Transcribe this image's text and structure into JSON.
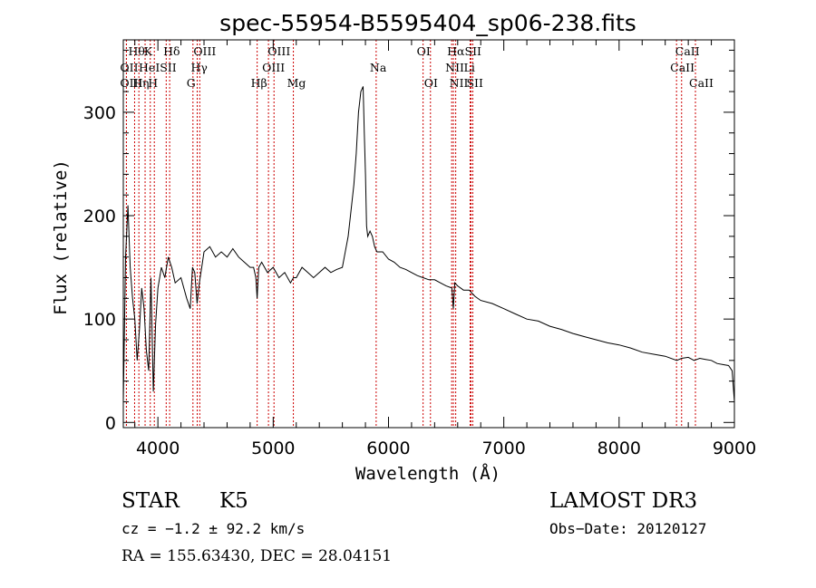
{
  "chart_data": {
    "type": "line",
    "title": "spec-55954-B5595404_sp06-238.fits",
    "xlabel": "Wavelength (Å)",
    "ylabel": "Flux (relative)",
    "xlim": [
      3700,
      9000
    ],
    "ylim": [
      -5,
      370
    ],
    "x_ticks": [
      4000,
      5000,
      6000,
      7000,
      8000,
      9000
    ],
    "y_ticks": [
      0,
      100,
      200,
      300
    ],
    "line_color": "#000000",
    "marker_color": "#cc0000",
    "spectrum": {
      "x": [
        3700,
        3720,
        3740,
        3760,
        3780,
        3800,
        3820,
        3840,
        3860,
        3880,
        3900,
        3920,
        3940,
        3960,
        3980,
        4000,
        4030,
        4060,
        4090,
        4120,
        4150,
        4200,
        4250,
        4280,
        4300,
        4320,
        4340,
        4360,
        4380,
        4400,
        4450,
        4500,
        4550,
        4600,
        4650,
        4700,
        4750,
        4800,
        4830,
        4850,
        4861,
        4875,
        4900,
        4950,
        5000,
        5050,
        5100,
        5150,
        5175,
        5200,
        5250,
        5300,
        5350,
        5400,
        5450,
        5500,
        5550,
        5600,
        5650,
        5680,
        5700,
        5720,
        5740,
        5760,
        5780,
        5790,
        5800,
        5810,
        5820,
        5840,
        5860,
        5880,
        5900,
        5950,
        6000,
        6050,
        6100,
        6150,
        6200,
        6250,
        6300,
        6350,
        6400,
        6450,
        6500,
        6550,
        6562,
        6575,
        6600,
        6650,
        6700,
        6750,
        6800,
        6900,
        7000,
        7100,
        7200,
        7300,
        7400,
        7500,
        7600,
        7700,
        7800,
        7900,
        8000,
        8100,
        8200,
        8300,
        8400,
        8500,
        8542,
        8600,
        8650,
        8700,
        8750,
        8800,
        8850,
        8900,
        8950,
        8980,
        9000
      ],
      "y": [
        20,
        160,
        210,
        150,
        120,
        100,
        60,
        90,
        130,
        110,
        70,
        50,
        140,
        30,
        95,
        130,
        150,
        140,
        160,
        150,
        135,
        140,
        120,
        110,
        150,
        145,
        115,
        135,
        150,
        165,
        170,
        160,
        165,
        160,
        168,
        160,
        155,
        150,
        150,
        140,
        120,
        150,
        155,
        145,
        150,
        140,
        145,
        135,
        140,
        140,
        150,
        145,
        140,
        145,
        150,
        145,
        148,
        150,
        180,
        210,
        230,
        260,
        300,
        320,
        325,
        280,
        240,
        190,
        180,
        185,
        180,
        170,
        165,
        165,
        158,
        155,
        150,
        148,
        145,
        142,
        140,
        138,
        138,
        135,
        132,
        130,
        110,
        135,
        132,
        128,
        128,
        122,
        118,
        115,
        110,
        105,
        100,
        98,
        93,
        90,
        86,
        83,
        80,
        77,
        75,
        72,
        68,
        66,
        64,
        60,
        62,
        63,
        60,
        62,
        61,
        60,
        57,
        56,
        55,
        50,
        20
      ]
    },
    "lines": [
      {
        "label": "Hθ",
        "x": 3798,
        "row": 0
      },
      {
        "label": "OII",
        "x": 3727,
        "row": 1
      },
      {
        "label": "OIII",
        "x": 3727,
        "row": 2
      },
      {
        "label": "HeI",
        "x": 3889,
        "row": 1
      },
      {
        "label": "Hη",
        "x": 3835,
        "row": 2
      },
      {
        "label": "K",
        "x": 3934,
        "row": 0
      },
      {
        "label": "H",
        "x": 3969,
        "row": 2
      },
      {
        "label": "SII",
        "x": 4072,
        "row": 1
      },
      {
        "label": "Hδ",
        "x": 4102,
        "row": 0
      },
      {
        "label": "OIII",
        "x": 4363,
        "row": 0
      },
      {
        "label": "Hγ",
        "x": 4341,
        "row": 1
      },
      {
        "label": "G",
        "x": 4304,
        "row": 2
      },
      {
        "label": "Hβ",
        "x": 4861,
        "row": 2
      },
      {
        "label": "OIII",
        "x": 4959,
        "row": 1
      },
      {
        "label": "OIII",
        "x": 5007,
        "row": 0
      },
      {
        "label": "Mg",
        "x": 5175,
        "row": 2
      },
      {
        "label": "Na",
        "x": 5893,
        "row": 1
      },
      {
        "label": "OI",
        "x": 6300,
        "row": 0
      },
      {
        "label": "OI",
        "x": 6364,
        "row": 2
      },
      {
        "label": "Hα",
        "x": 6563,
        "row": 0
      },
      {
        "label": "NII",
        "x": 6548,
        "row": 1
      },
      {
        "label": "NII",
        "x": 6583,
        "row": 2
      },
      {
        "label": "SII",
        "x": 6716,
        "row": 0
      },
      {
        "label": "Li",
        "x": 6708,
        "row": 1
      },
      {
        "label": "SII",
        "x": 6731,
        "row": 2
      },
      {
        "label": "CaII",
        "x": 8498,
        "row": 1
      },
      {
        "label": "CaII",
        "x": 8542,
        "row": 0
      },
      {
        "label": "CaII",
        "x": 8662,
        "row": 2
      }
    ]
  },
  "info": {
    "class": "STAR",
    "subclass": "K5",
    "survey": "LAMOST DR3",
    "cz": "cz = −1.2 ± 92.2 km/s",
    "obs_date": "Obs−Date: 20120127",
    "coords": "RA = 155.63430, DEC =  28.04151"
  }
}
